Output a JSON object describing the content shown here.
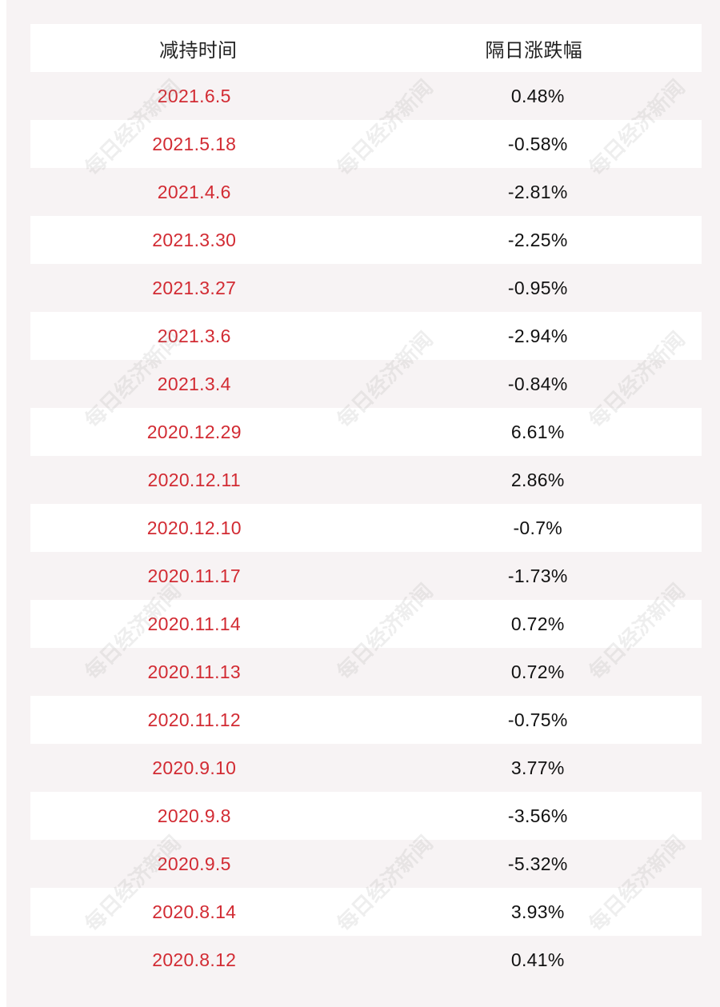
{
  "table": {
    "headers": {
      "date": "减持时间",
      "change": "隔日涨跌幅"
    },
    "rows": [
      {
        "date": "2021.6.5",
        "change": "0.48%"
      },
      {
        "date": "2021.5.18",
        "change": "-0.58%"
      },
      {
        "date": "2021.4.6",
        "change": "-2.81%"
      },
      {
        "date": "2021.3.30",
        "change": "-2.25%"
      },
      {
        "date": "2021.3.27",
        "change": "-0.95%"
      },
      {
        "date": "2021.3.6",
        "change": "-2.94%"
      },
      {
        "date": "2021.3.4",
        "change": "-0.84%"
      },
      {
        "date": "2020.12.29",
        "change": "6.61%"
      },
      {
        "date": "2020.12.11",
        "change": "2.86%"
      },
      {
        "date": "2020.12.10",
        "change": "-0.7%"
      },
      {
        "date": "2020.11.17",
        "change": "-1.73%"
      },
      {
        "date": "2020.11.14",
        "change": "0.72%"
      },
      {
        "date": "2020.11.13",
        "change": "0.72%"
      },
      {
        "date": "2020.11.12",
        "change": "-0.75%"
      },
      {
        "date": "2020.9.10",
        "change": "3.77%"
      },
      {
        "date": "2020.9.8",
        "change": "-3.56%"
      },
      {
        "date": "2020.9.5",
        "change": "-5.32%"
      },
      {
        "date": "2020.8.14",
        "change": "3.93%"
      },
      {
        "date": "2020.8.12",
        "change": "0.41%"
      }
    ]
  },
  "watermark": {
    "text": "每日经济新闻"
  },
  "colors": {
    "date_text": "#d22b33",
    "panel_bg": "#f7f3f4",
    "row_white": "#ffffff"
  }
}
